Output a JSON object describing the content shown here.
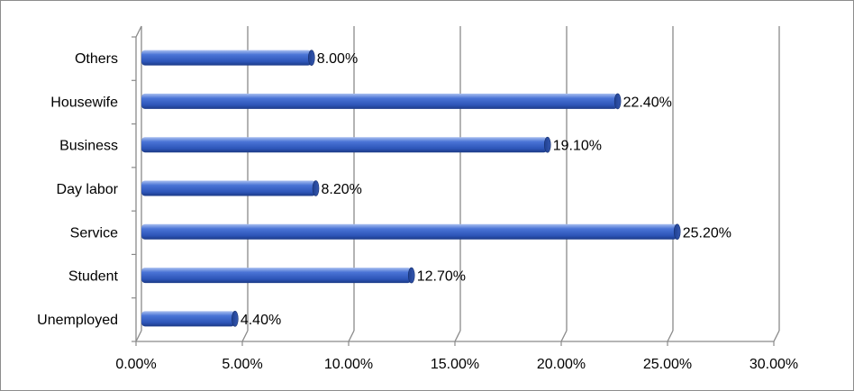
{
  "chart_data": {
    "type": "bar",
    "orientation": "horizontal",
    "style": "3d-cylinder",
    "title": "",
    "xlabel": "",
    "ylabel": "",
    "categories": [
      "Others",
      "Housewife",
      "Business",
      "Day labor",
      "Service",
      "Student",
      "Unemployed"
    ],
    "values": [
      8.0,
      22.4,
      19.1,
      8.2,
      25.2,
      12.7,
      4.4
    ],
    "data_labels": [
      "8.00%",
      "22.40%",
      "19.10%",
      "8.20%",
      "25.20%",
      "12.70%",
      "4.40%"
    ],
    "xlim": [
      0,
      30
    ],
    "x_ticks": [
      0,
      5,
      10,
      15,
      20,
      25,
      30
    ],
    "x_tick_labels": [
      "0.00%",
      "5.00%",
      "10.00%",
      "15.00%",
      "20.00%",
      "25.00%",
      "30.00%"
    ],
    "grid": true,
    "legend": "none",
    "colors": {
      "bar": "#3a64c8",
      "bar_dark": "#1f3f8f",
      "bar_light": "#7f9fe6",
      "grid": "#8a8a8a"
    }
  }
}
